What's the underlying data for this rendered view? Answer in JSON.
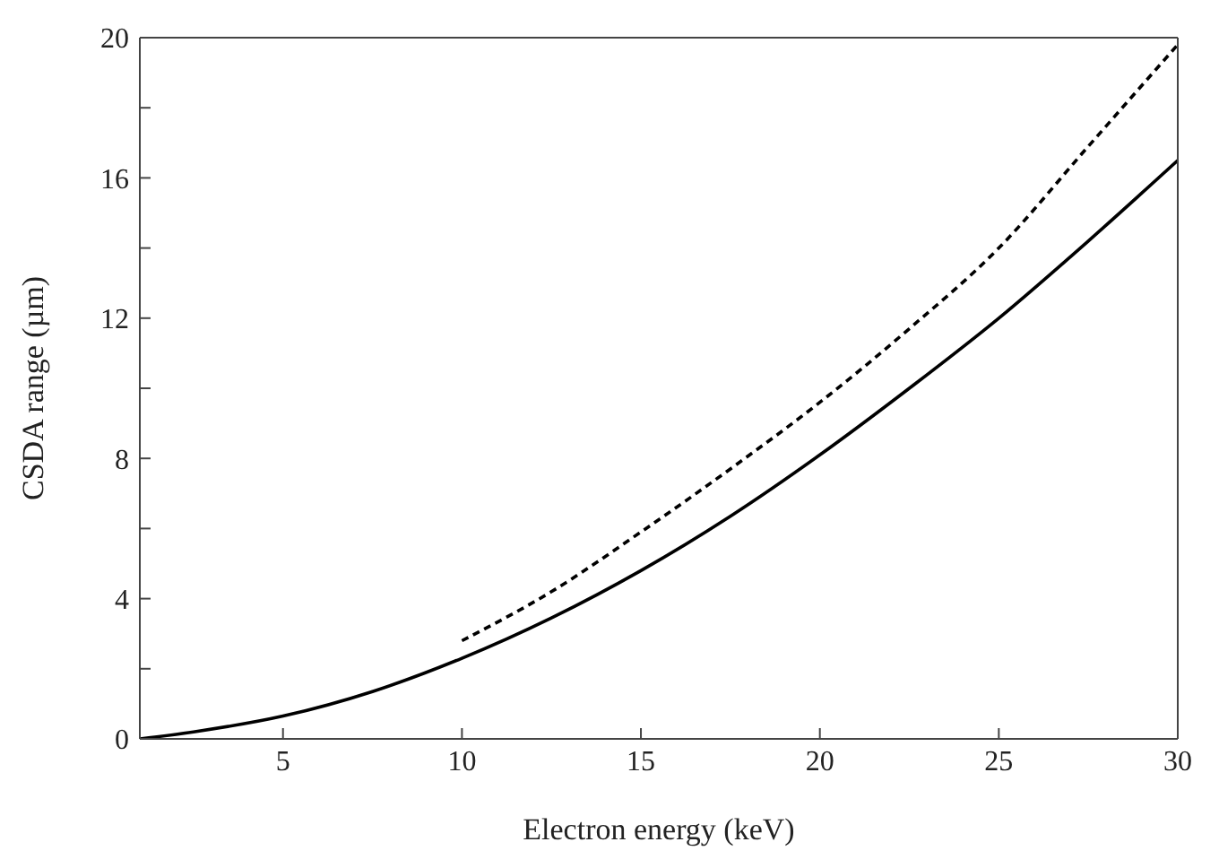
{
  "chart_data": {
    "type": "line",
    "xlabel": "Electron energy (keV)",
    "ylabel": "CSDA range (µm)",
    "xlim": [
      1,
      30
    ],
    "xticks": [
      5,
      10,
      15,
      20,
      25,
      30
    ],
    "ylim": [
      0,
      20
    ],
    "yticks": [
      0,
      {
        "value": 2,
        "label": null
      },
      4,
      {
        "value": 6,
        "label": null
      },
      8,
      {
        "value": 10,
        "label": null
      },
      12,
      {
        "value": 14,
        "label": null
      },
      16,
      {
        "value": 18,
        "label": null
      },
      20
    ],
    "marker": "none",
    "series": [
      {
        "color": "#000000",
        "line_style": "solid",
        "x": [
          1,
          2.5,
          5,
          7.5,
          10,
          12.5,
          15,
          17.5,
          20,
          22.5,
          25,
          27.5,
          30
        ],
        "values": [
          0,
          0.2,
          0.65,
          1.35,
          2.3,
          3.45,
          4.8,
          6.35,
          8.1,
          10,
          12.0,
          14.2,
          16.5
        ]
      },
      {
        "color": "#000000",
        "line_style": "dashed",
        "x": [
          10,
          12.5,
          15,
          17.5,
          20,
          22.5,
          25,
          27.5,
          30
        ],
        "values": [
          2.8,
          4.2,
          5.9,
          7.7,
          9.6,
          11.7,
          14.0,
          16.9,
          19.8
        ]
      }
    ]
  }
}
